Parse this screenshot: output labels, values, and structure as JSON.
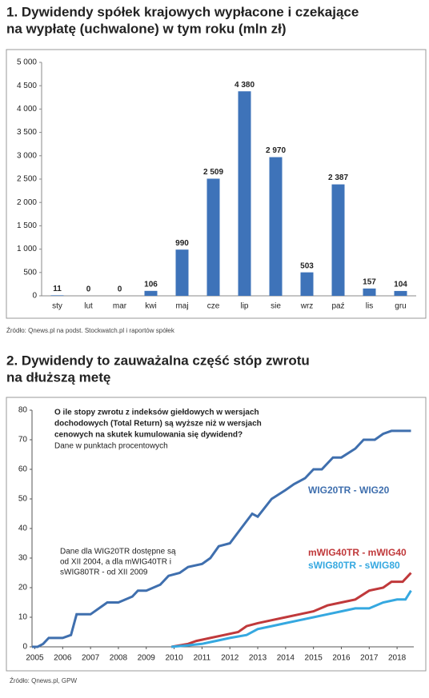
{
  "chart_data": [
    {
      "type": "bar",
      "title": [
        "1. Dywidendy spółek krajowych wypłacone i czekające",
        "na wypłatę (uchwalone) w tym roku (mln zł)"
      ],
      "categories": [
        "sty",
        "lut",
        "mar",
        "kwi",
        "maj",
        "cze",
        "lip",
        "sie",
        "wrz",
        "paź",
        "lis",
        "gru"
      ],
      "values": [
        11,
        0,
        0,
        106,
        990,
        2509,
        4380,
        2970,
        503,
        2387,
        157,
        104
      ],
      "value_labels": [
        "11",
        "0",
        "0",
        "106",
        "990",
        "2 509",
        "4 380",
        "2 970",
        "503",
        "2 387",
        "157",
        "104"
      ],
      "color": "#3e73b9",
      "ylim": [
        0,
        5000
      ],
      "yticks": [
        0,
        500,
        {
          "value": 1000,
          "label": "1 000"
        },
        {
          "value": 1500,
          "label": "1 500"
        },
        {
          "value": 2000,
          "label": "2 000"
        },
        {
          "value": 2500,
          "label": "2 500"
        },
        {
          "value": 3000,
          "label": "3 000"
        },
        {
          "value": 3500,
          "label": "3 500"
        },
        {
          "value": 4000,
          "label": "4 000"
        },
        {
          "value": 4500,
          "label": "4 500"
        },
        {
          "value": 5000,
          "label": "5 000"
        }
      ],
      "source": "Źródło: Qnews.pl na podst. Stockwatch.pl i raportów spółek"
    },
    {
      "type": "line",
      "title": [
        "2. Dywidendy to zauważalna część stóp zwrotu",
        "na dłuższą metę"
      ],
      "question": [
        "O ile stopy zwrotu z indeksów giełdowych w wersjach",
        "dochodowych (Total Return) są wyższe niż w wersjach",
        "cenowych na skutek kumulowania się dywidend?"
      ],
      "subtitle": "Dane w punktach procentowych",
      "note": [
        "Dane dla WIG20TR dostępne są",
        "od XII 2004, a dla mWIG40TR i",
        "sWIG80TR - od XII 2009"
      ],
      "xlim": [
        2004.9,
        2018.6
      ],
      "xticks": [
        2005,
        2006,
        2007,
        2008,
        2009,
        2010,
        2011,
        2012,
        2013,
        2014,
        2015,
        2016,
        2017,
        2018
      ],
      "ylim": [
        0,
        80
      ],
      "yticks": [
        0,
        10,
        20,
        30,
        40,
        50,
        60,
        70,
        80
      ],
      "series": [
        {
          "name": "WIG20TR - WIG20",
          "color": "#3f6fae",
          "x": [
            2004.9,
            2005.1,
            2005.3,
            2005.5,
            2006,
            2006.3,
            2006.5,
            2007,
            2007.3,
            2007.6,
            2008,
            2008.5,
            2008.7,
            2009,
            2009.5,
            2009.8,
            2010.2,
            2010.5,
            2011,
            2011.3,
            2011.6,
            2012,
            2012.4,
            2012.8,
            2013,
            2013.5,
            2014,
            2014.3,
            2014.7,
            2015,
            2015.3,
            2015.7,
            2016,
            2016.5,
            2016.8,
            2017.2,
            2017.5,
            2017.8,
            2018.5
          ],
          "values": [
            0,
            0,
            1,
            3,
            3,
            4,
            11,
            11,
            13,
            15,
            15,
            17,
            19,
            19,
            21,
            24,
            25,
            27,
            28,
            30,
            34,
            35,
            40,
            45,
            44,
            50,
            53,
            55,
            57,
            60,
            60,
            64,
            64,
            67,
            70,
            70,
            72,
            73,
            73
          ]
        },
        {
          "name": "mWIG40TR - mWIG40",
          "color": "#c0393b",
          "x": [
            2009.9,
            2010.5,
            2010.8,
            2011.3,
            2011.8,
            2012.3,
            2012.6,
            2013,
            2013.5,
            2014,
            2014.5,
            2015,
            2015.5,
            2016,
            2016.5,
            2017,
            2017.5,
            2017.8,
            2018.2,
            2018.5
          ],
          "values": [
            0,
            1,
            2,
            3,
            4,
            5,
            7,
            8,
            9,
            10,
            11,
            12,
            14,
            15,
            16,
            19,
            20,
            22,
            22,
            25
          ]
        },
        {
          "name": "sWIG80TR - sWIG80",
          "color": "#35a8e0",
          "x": [
            2009.9,
            2010.5,
            2011,
            2011.5,
            2012,
            2012.6,
            2013,
            2013.5,
            2014,
            2014.5,
            2015,
            2015.5,
            2016,
            2016.5,
            2017,
            2017.5,
            2018,
            2018.3,
            2018.5
          ],
          "values": [
            0,
            0.5,
            1,
            2,
            3,
            4,
            6,
            7,
            8,
            9,
            10,
            11,
            12,
            13,
            13,
            15,
            16,
            16,
            19
          ]
        }
      ],
      "source": "Źródło: Qnews.pl, GPW"
    }
  ]
}
